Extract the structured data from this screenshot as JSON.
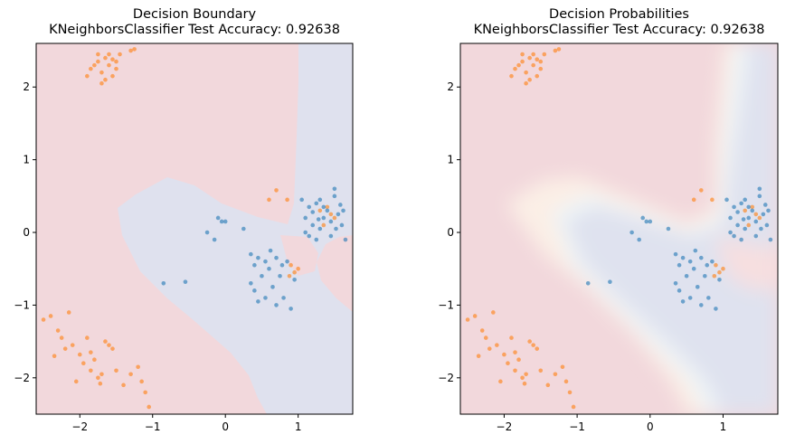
{
  "chart_data": [
    {
      "type": "scatter",
      "title": "Decision Boundary",
      "subtitle": "KNeighborsClassifier Test Accuracy: 0.92638",
      "xlim": [
        -2.6,
        1.75
      ],
      "ylim": [
        -2.5,
        2.6
      ],
      "xticks": [
        -2,
        -1,
        0,
        1
      ],
      "yticks": [
        -2,
        -1,
        0,
        1,
        2
      ],
      "background": "binary decision regions",
      "series": [
        {
          "color": "#ff7f0e",
          "points": [
            [
              -1.8,
              2.3
            ],
            [
              -1.75,
              2.35
            ],
            [
              -1.7,
              2.2
            ],
            [
              -1.65,
              2.4
            ],
            [
              -1.6,
              2.3
            ],
            [
              -1.55,
              2.15
            ],
            [
              -1.5,
              2.35
            ],
            [
              -1.45,
              2.45
            ],
            [
              -1.85,
              2.25
            ],
            [
              -1.9,
              2.15
            ],
            [
              -1.7,
              2.05
            ],
            [
              -1.3,
              2.5
            ],
            [
              -1.25,
              2.52
            ],
            [
              -1.6,
              2.45
            ],
            [
              -1.5,
              2.25
            ],
            [
              -1.65,
              2.1
            ],
            [
              -1.75,
              2.45
            ],
            [
              -1.55,
              2.38
            ],
            [
              -2.5,
              -1.2
            ],
            [
              -2.4,
              -1.15
            ],
            [
              -2.3,
              -1.35
            ],
            [
              -2.2,
              -1.6
            ],
            [
              -2.1,
              -1.55
            ],
            [
              -2.0,
              -1.68
            ],
            [
              -1.95,
              -1.8
            ],
            [
              -1.85,
              -1.65
            ],
            [
              -1.8,
              -1.75
            ],
            [
              -1.75,
              -2.0
            ],
            [
              -1.7,
              -1.95
            ],
            [
              -1.6,
              -1.55
            ],
            [
              -1.55,
              -1.6
            ],
            [
              -1.5,
              -1.9
            ],
            [
              -1.4,
              -2.1
            ],
            [
              -1.3,
              -1.95
            ],
            [
              -1.2,
              -1.85
            ],
            [
              -1.1,
              -2.2
            ],
            [
              -1.05,
              -2.4
            ],
            [
              -2.15,
              -1.1
            ],
            [
              -2.25,
              -1.45
            ],
            [
              -1.9,
              -1.45
            ],
            [
              -1.65,
              -1.5
            ],
            [
              -2.05,
              -2.05
            ],
            [
              -1.72,
              -2.08
            ],
            [
              -1.15,
              -2.05
            ],
            [
              -2.35,
              -1.7
            ],
            [
              -1.85,
              -1.9
            ],
            [
              0.6,
              0.45
            ],
            [
              0.7,
              0.58
            ],
            [
              0.85,
              0.45
            ],
            [
              1.3,
              0.3
            ],
            [
              1.4,
              0.35
            ],
            [
              1.45,
              0.25
            ],
            [
              0.9,
              -0.45
            ],
            [
              0.95,
              -0.55
            ],
            [
              1.0,
              -0.5
            ],
            [
              0.88,
              -0.6
            ],
            [
              1.5,
              0.2
            ],
            [
              1.35,
              0.1
            ]
          ]
        },
        {
          "color": "#1f77b4",
          "points": [
            [
              1.1,
              0.2
            ],
            [
              1.15,
              0.35
            ],
            [
              1.2,
              0.1
            ],
            [
              1.25,
              0.4
            ],
            [
              1.3,
              0.05
            ],
            [
              1.35,
              0.2
            ],
            [
              1.4,
              0.3
            ],
            [
              1.45,
              0.15
            ],
            [
              1.5,
              0.5
            ],
            [
              1.55,
              0.25
            ],
            [
              1.6,
              0.1
            ],
            [
              1.62,
              0.3
            ],
            [
              1.65,
              -0.1
            ],
            [
              1.1,
              0.0
            ],
            [
              1.15,
              -0.05
            ],
            [
              1.2,
              0.28
            ],
            [
              1.25,
              -0.1
            ],
            [
              1.3,
              0.45
            ],
            [
              1.45,
              -0.05
            ],
            [
              1.5,
              0.6
            ],
            [
              1.35,
              0.35
            ],
            [
              1.28,
              0.18
            ],
            [
              1.52,
              0.05
            ],
            [
              1.58,
              0.38
            ],
            [
              1.05,
              0.45
            ],
            [
              0.35,
              -0.3
            ],
            [
              0.4,
              -0.45
            ],
            [
              0.45,
              -0.35
            ],
            [
              0.5,
              -0.6
            ],
            [
              0.55,
              -0.4
            ],
            [
              0.6,
              -0.5
            ],
            [
              0.65,
              -0.75
            ],
            [
              0.7,
              -0.35
            ],
            [
              0.75,
              -0.6
            ],
            [
              0.8,
              -0.9
            ],
            [
              0.85,
              -0.4
            ],
            [
              0.9,
              -1.05
            ],
            [
              0.95,
              -0.65
            ],
            [
              0.4,
              -0.8
            ],
            [
              0.45,
              -0.95
            ],
            [
              0.55,
              -0.9
            ],
            [
              0.7,
              -1.0
            ],
            [
              0.35,
              -0.7
            ],
            [
              0.62,
              -0.25
            ],
            [
              0.78,
              -0.45
            ],
            [
              -0.85,
              -0.7
            ],
            [
              -0.55,
              -0.68
            ],
            [
              -0.25,
              0.0
            ],
            [
              -0.15,
              -0.1
            ],
            [
              -0.1,
              0.2
            ],
            [
              -0.05,
              0.15
            ],
            [
              0.0,
              0.15
            ],
            [
              0.25,
              0.05
            ]
          ]
        }
      ]
    },
    {
      "type": "scatter",
      "title": "Decision Probabilities",
      "subtitle": "KNeighborsClassifier Test Accuracy: 0.92638",
      "xlim": [
        -2.6,
        1.75
      ],
      "ylim": [
        -2.5,
        2.6
      ],
      "xticks": [
        -2,
        -1,
        0,
        1
      ],
      "yticks": [
        -2,
        -1,
        0,
        1,
        2
      ],
      "background": "probability shading",
      "series_ref": "same points as first chart"
    }
  ],
  "colors": {
    "class0_region": "#f2d8dc",
    "class1_region": "#dfe1ee",
    "class0_point": "#ff7f0e",
    "class1_point": "#1f77b4"
  }
}
